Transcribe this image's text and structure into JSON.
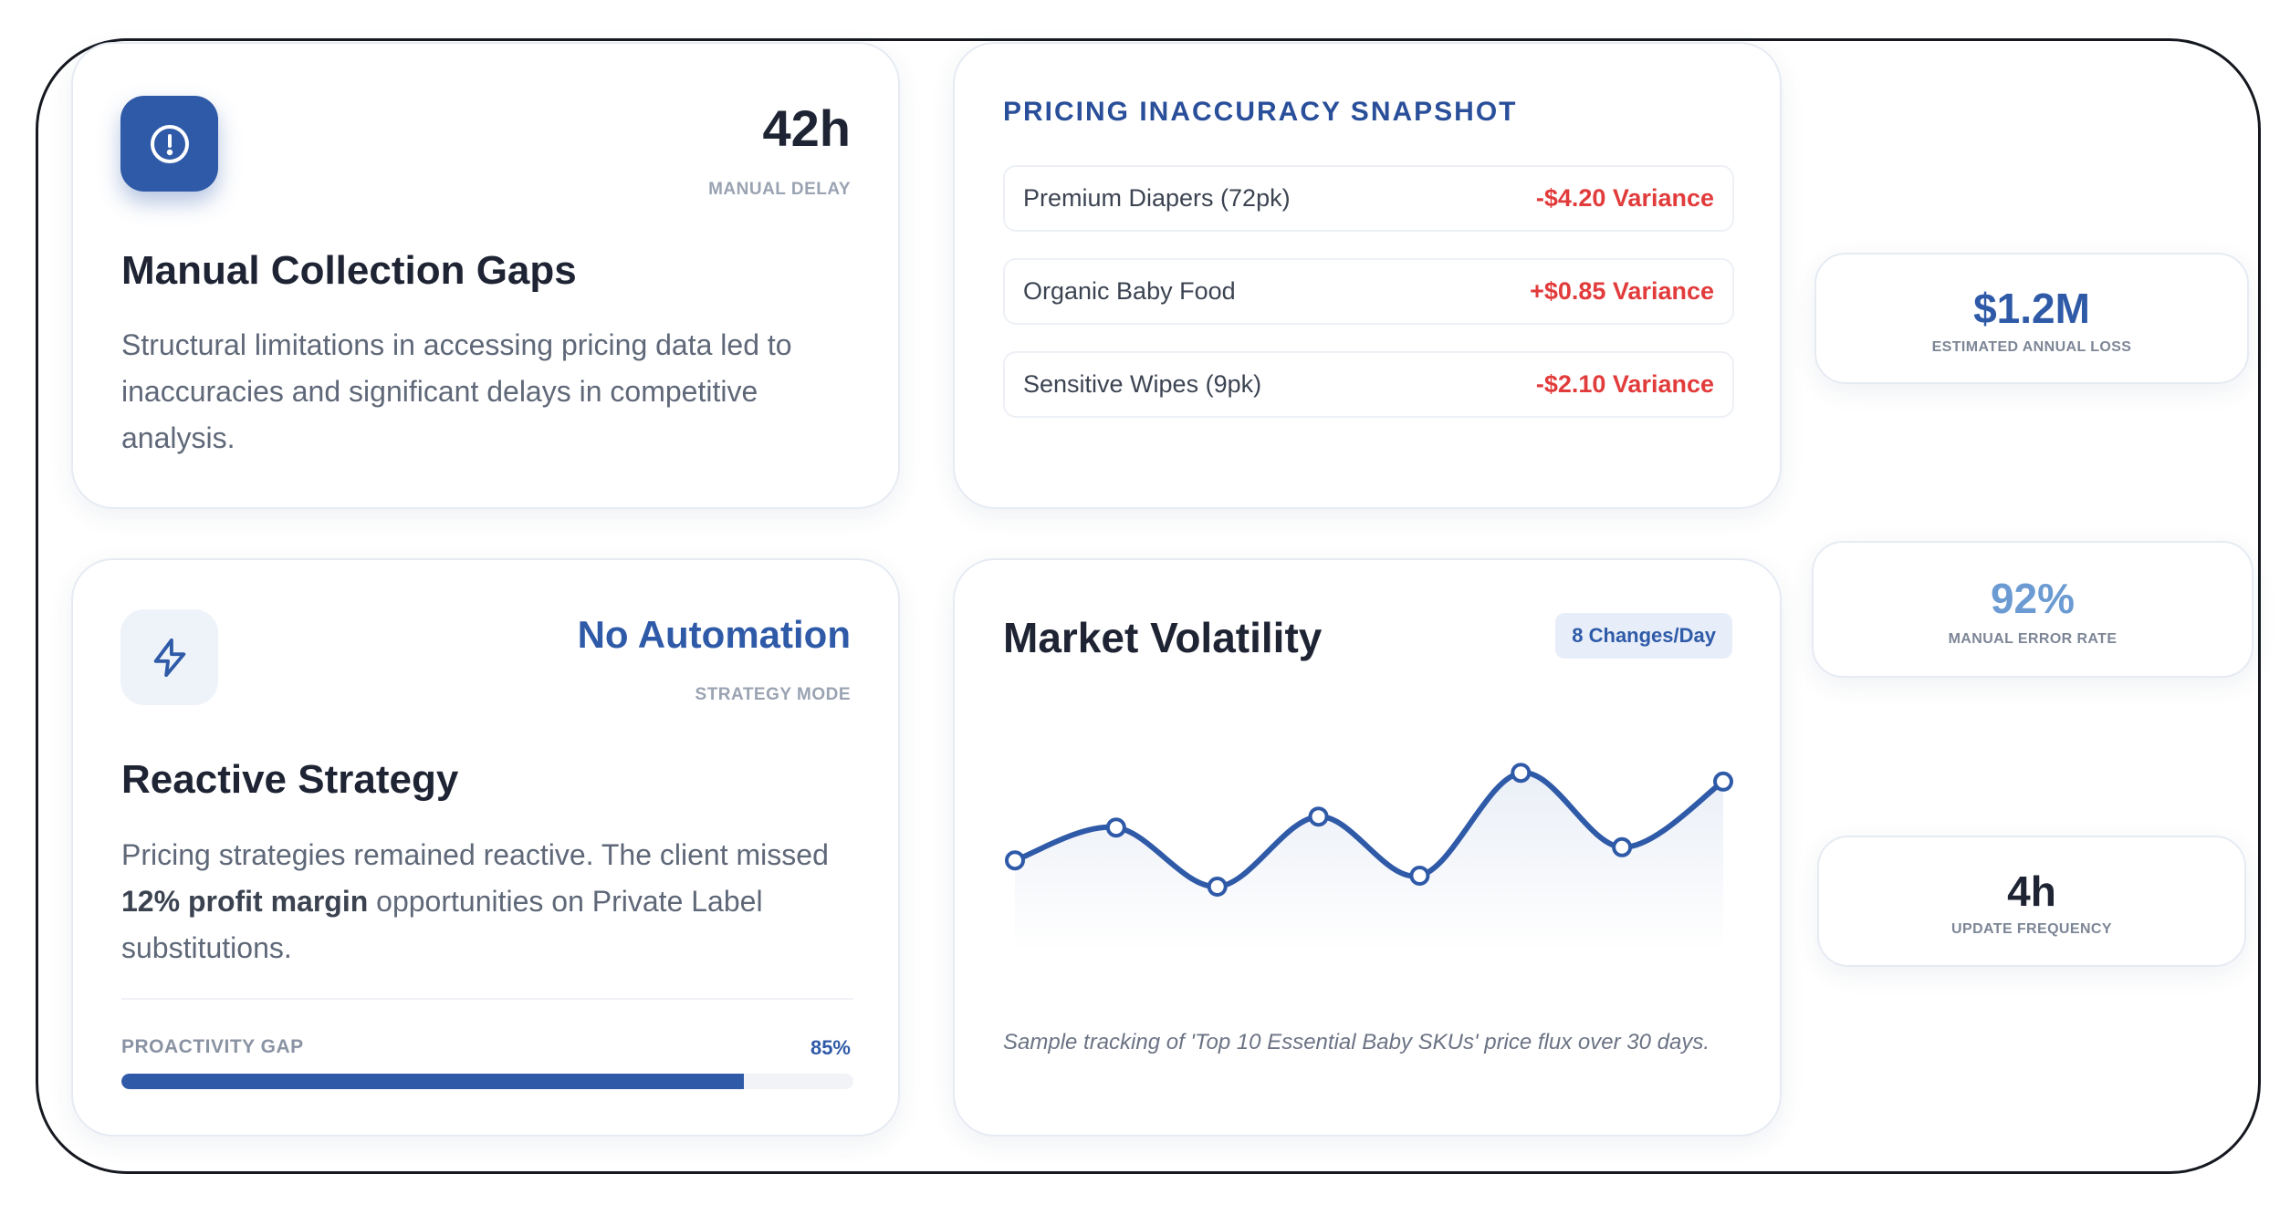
{
  "cards": {
    "manual_collection": {
      "icon": "alert-circle-icon",
      "stat_value": "42h",
      "stat_label": "MANUAL DELAY",
      "title": "Manual Collection Gaps",
      "description": "Structural limitations in accessing pricing data led to inaccuracies and significant delays in competitive analysis."
    },
    "reactive_strategy": {
      "icon": "lightning-bolt-icon",
      "stat_value": "No Automation",
      "stat_label": "STRATEGY MODE",
      "title": "Reactive Strategy",
      "description_part1": "Pricing strategies remained reactive. The client missed ",
      "description_bold": "12% profit margin",
      "description_part2": " opportunities on Private Label substitutions.",
      "progress_label": "PROACTIVITY GAP",
      "progress_value_text": "85%",
      "progress_fraction": 0.85
    },
    "pricing_snapshot": {
      "heading": "PRICING INACCURACY SNAPSHOT",
      "rows": [
        {
          "name": "Premium Diapers (72pk)",
          "variance": "-$4.20 Variance"
        },
        {
          "name": "Organic Baby Food",
          "variance": "+$0.85 Variance"
        },
        {
          "name": "Sensitive Wipes (9pk)",
          "variance": "-$2.10 Variance"
        }
      ]
    },
    "market_volatility": {
      "title": "Market Volatility",
      "badge": "8 Changes/Day",
      "caption": "Sample tracking of 'Top 10 Essential Baby SKUs' price flux over 30 days."
    }
  },
  "kpis": [
    {
      "value": "$1.2M",
      "label": "ESTIMATED ANNUAL LOSS",
      "color": "#2f5aa8"
    },
    {
      "value": "92%",
      "label": "MANUAL ERROR RATE",
      "color": "#6b9bd2"
    },
    {
      "value": "4h",
      "label": "UPDATE FREQUENCY",
      "color": "#1e2433"
    }
  ],
  "colors": {
    "primary": "#2f5aa8",
    "negative": "#e23b3b",
    "text": "#1e2433",
    "muted": "#5f6878"
  },
  "chart_data": {
    "type": "line",
    "title": "Market Volatility",
    "xlabel": "",
    "ylabel": "",
    "x": [
      1,
      2,
      3,
      4,
      5,
      6,
      7,
      8
    ],
    "series": [
      {
        "values": [
          0.42,
          0.57,
          0.3,
          0.62,
          0.35,
          0.82,
          0.48,
          0.78
        ]
      }
    ],
    "ylim": [
      0,
      1
    ],
    "grid": false,
    "legend": false
  }
}
